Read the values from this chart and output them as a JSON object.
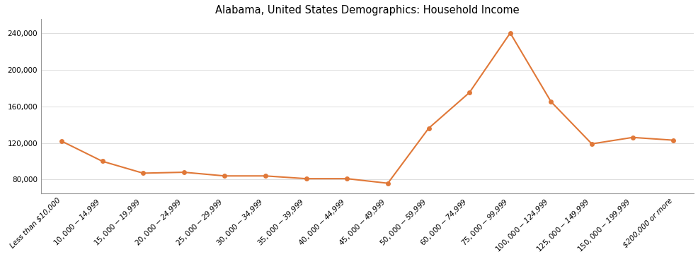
{
  "title": "Alabama, United States Demographics: Household Income",
  "categories": [
    "Less than $10,000",
    "$10,000 - $14,999",
    "$15,000 - $19,999",
    "$20,000 - $24,999",
    "$25,000 - $29,999",
    "$30,000 - $34,999",
    "$35,000 - $39,999",
    "$40,000 - $44,999",
    "$45,000 - $49,999",
    "$50,000 - $59,999",
    "$60,000 - $74,999",
    "$75,000 - $99,999",
    "$100,000 - $124,999",
    "$125,000 - $149,999",
    "$150,000 - $199,999",
    "$200,000 or more"
  ],
  "values": [
    122000,
    100000,
    87000,
    88000,
    84000,
    84000,
    81000,
    81000,
    76000,
    136000,
    175000,
    240000,
    165000,
    119000,
    126000,
    123000
  ],
  "line_color": "#E07838",
  "marker_color": "#E07838",
  "marker_size": 5,
  "line_width": 1.5,
  "ylim": [
    65000,
    255000
  ],
  "yticks": [
    80000,
    120000,
    160000,
    200000,
    240000
  ],
  "background_color": "#ffffff",
  "title_fontsize": 10.5,
  "tick_fontsize": 7.5
}
